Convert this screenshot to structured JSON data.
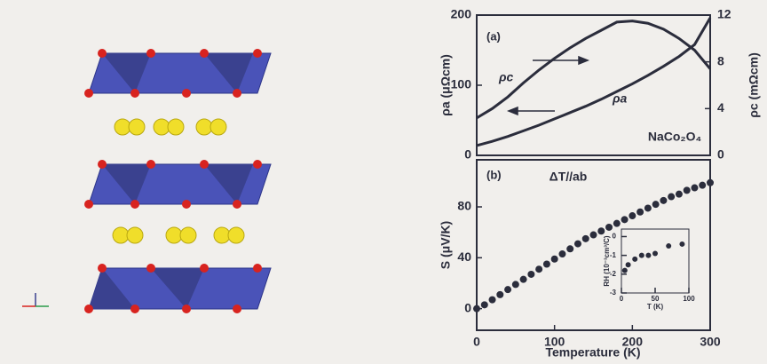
{
  "chart_data": [
    {
      "type": "line",
      "label": "(a)",
      "annotations": [
        "NaCo₂O₄"
      ],
      "x": [
        0,
        20,
        40,
        60,
        80,
        100,
        120,
        140,
        160,
        180,
        200,
        220,
        240,
        260,
        280,
        300
      ],
      "xlim": [
        0,
        300
      ],
      "ylim": [
        0,
        200
      ],
      "yticks": [
        0,
        100,
        200
      ],
      "y2lim": [
        0,
        12
      ],
      "y2ticks": [
        0,
        4,
        8,
        12
      ],
      "ylabel": "ρa (μΩcm)",
      "y2label": "ρc (mΩcm)",
      "series": [
        {
          "name": "ρa",
          "color": "#2b2d3c",
          "values": [
            14,
            20,
            27,
            35,
            43,
            52,
            61,
            70,
            80,
            91,
            102,
            114,
            127,
            141,
            158,
            196
          ]
        },
        {
          "name": "ρc",
          "color": "#2b2d3c",
          "axis": "y2",
          "values": [
            3.2,
            4.0,
            5.0,
            6.2,
            7.3,
            8.3,
            9.2,
            10.0,
            10.7,
            11.4,
            11.5,
            11.3,
            10.8,
            10.0,
            9.0,
            7.4
          ]
        }
      ]
    },
    {
      "type": "scatter",
      "label": "(b)",
      "annotations": [
        "ΔT//ab"
      ],
      "xlabel": "Temperature (K)",
      "ylabel": "S (μV/K)",
      "xlim": [
        0,
        300
      ],
      "xticks": [
        0,
        100,
        200,
        300
      ],
      "ylim": [
        -17,
        117
      ],
      "yticks": [
        0,
        40,
        80
      ],
      "color": "#2b2d3c",
      "x": [
        0,
        10,
        20,
        30,
        40,
        50,
        60,
        70,
        80,
        90,
        100,
        110,
        120,
        130,
        140,
        150,
        160,
        170,
        180,
        190,
        200,
        210,
        220,
        230,
        240,
        250,
        260,
        270,
        280,
        290,
        300
      ],
      "values": [
        0,
        3,
        7,
        11,
        15,
        19,
        23,
        27,
        31,
        35,
        39,
        43,
        47,
        51,
        55,
        58,
        61,
        64,
        67,
        70,
        73,
        76,
        79,
        82,
        85,
        88,
        90,
        93,
        95,
        97,
        99
      ]
    },
    {
      "type": "scatter",
      "xlabel": "T (K)",
      "ylabel": "RH (10⁻³cm³/C)",
      "xlim": [
        0,
        100
      ],
      "xticks": [
        0,
        50,
        100
      ],
      "ylim": [
        -3,
        0.4
      ],
      "yticks": [
        0,
        -1,
        -2,
        -3
      ],
      "color": "#2b2d3c",
      "x": [
        5,
        10,
        20,
        30,
        40,
        50,
        70,
        90
      ],
      "values": [
        -1.8,
        -1.5,
        -1.2,
        -1.0,
        -1.0,
        -0.9,
        -0.5,
        -0.4
      ]
    }
  ]
}
